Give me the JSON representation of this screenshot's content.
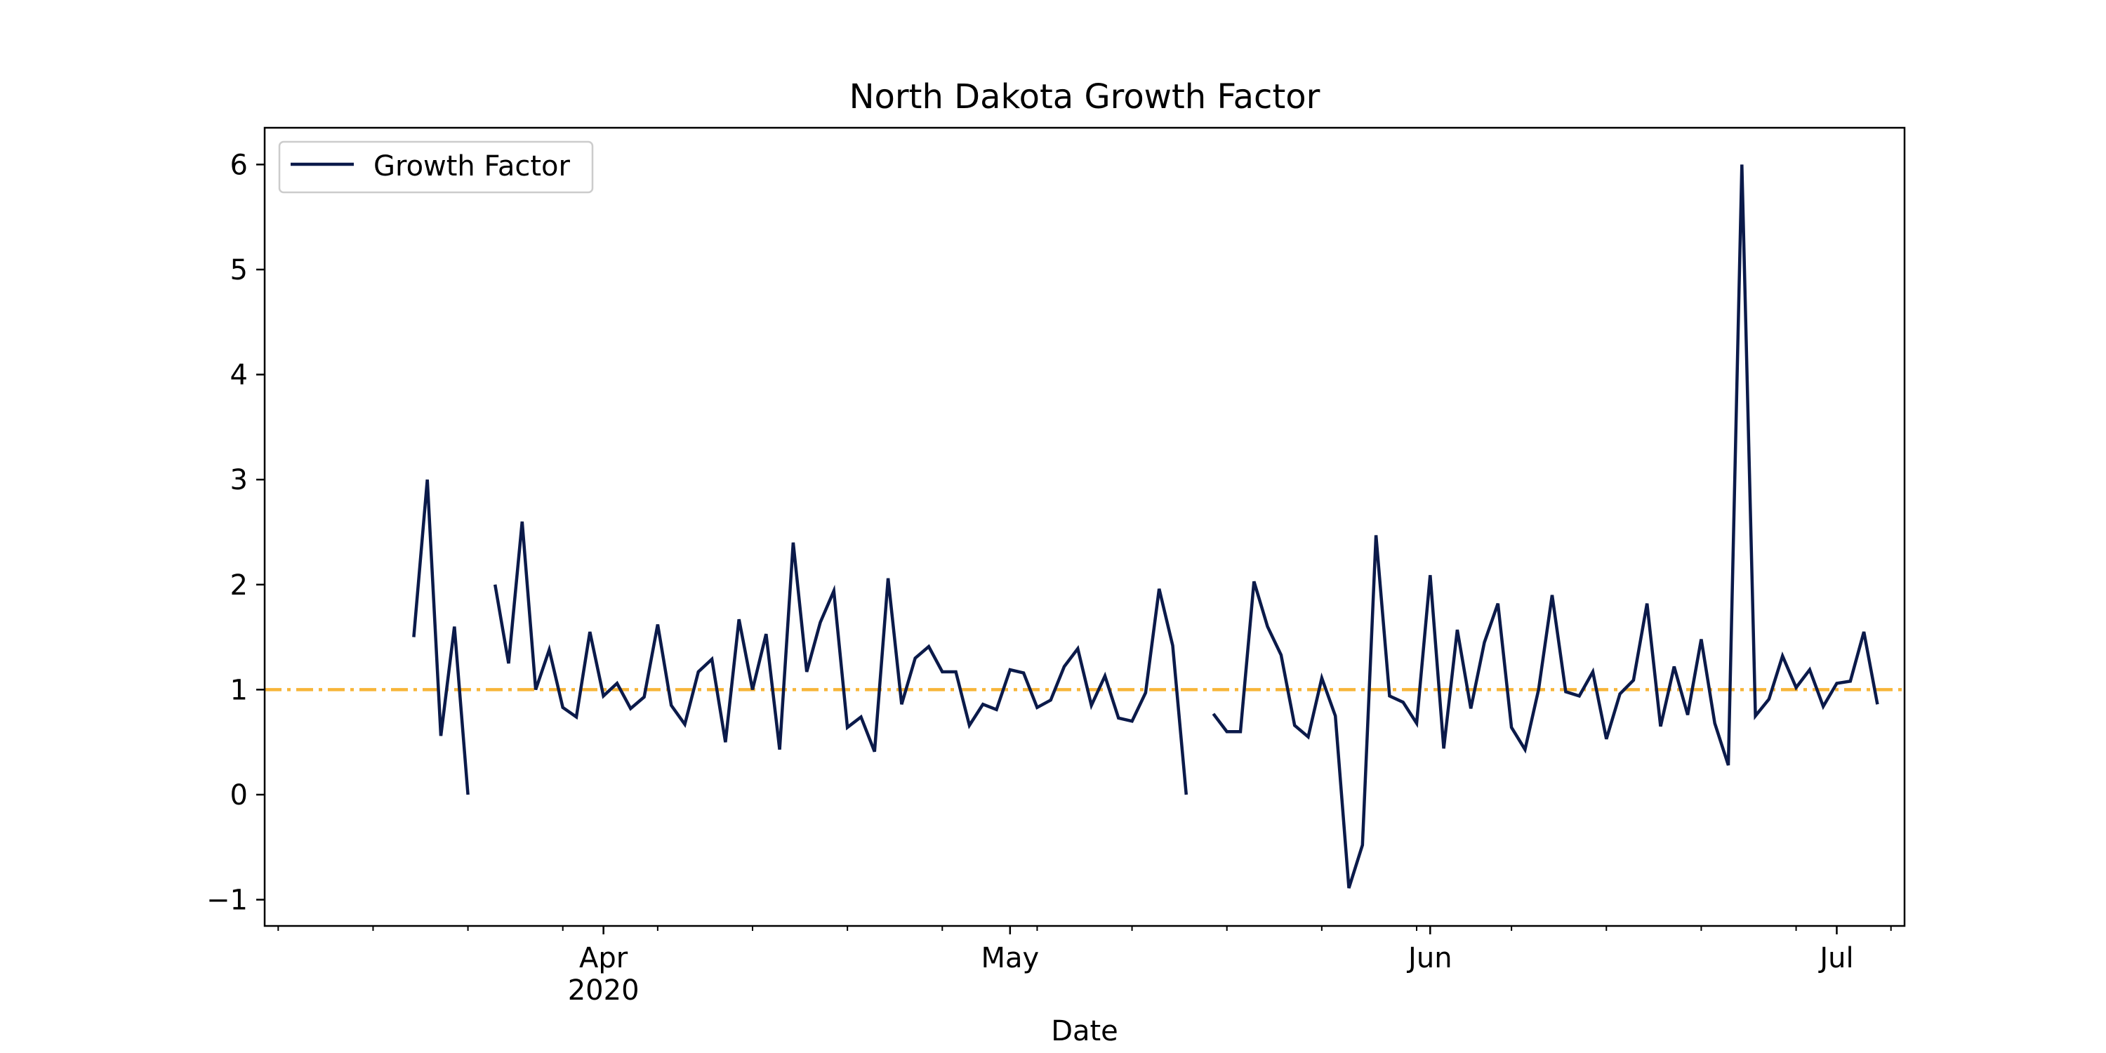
{
  "chart_data": {
    "type": "line",
    "title": "North Dakota Growth Factor",
    "xlabel": "Date",
    "ylabel": "",
    "xlim": [
      "2020-03-07",
      "2020-07-06"
    ],
    "ylim": [
      -1.25,
      6.35
    ],
    "yticks": [
      -1,
      0,
      1,
      2,
      3,
      4,
      5,
      6
    ],
    "ytick_labels": [
      "−1",
      "0",
      "1",
      "2",
      "3",
      "4",
      "5",
      "6"
    ],
    "xticks": [
      {
        "date": "2020-04-01",
        "label": "Apr",
        "sublabel": "2020"
      },
      {
        "date": "2020-05-01",
        "label": "May",
        "sublabel": ""
      },
      {
        "date": "2020-06-01",
        "label": "Jun",
        "sublabel": ""
      },
      {
        "date": "2020-07-01",
        "label": "Jul",
        "sublabel": ""
      }
    ],
    "minor_xticks": [
      "2020-03-08",
      "2020-03-15",
      "2020-03-22",
      "2020-03-29",
      "2020-04-05",
      "2020-04-12",
      "2020-04-19",
      "2020-04-26",
      "2020-05-03",
      "2020-05-10",
      "2020-05-17",
      "2020-05-24",
      "2020-05-31",
      "2020-06-07",
      "2020-06-14",
      "2020-06-21",
      "2020-06-28",
      "2020-07-05"
    ],
    "grid": false,
    "legend": {
      "position": "top-left",
      "entries": [
        "Growth Factor"
      ]
    },
    "reference_line": {
      "y": 1.0,
      "color": "#f7b538",
      "style": "dash-dot"
    },
    "series": [
      {
        "name": "Growth Factor",
        "color": "#0b1a4a",
        "start_date": "2020-03-18",
        "values": [
          1.5,
          3.0,
          0.56,
          1.6,
          0.0,
          null,
          2.0,
          1.25,
          2.6,
          1.0,
          1.38,
          0.83,
          0.74,
          1.55,
          0.94,
          1.06,
          0.82,
          0.93,
          1.62,
          0.85,
          0.67,
          1.17,
          1.29,
          0.5,
          1.67,
          1.0,
          1.53,
          0.43,
          2.4,
          1.17,
          1.64,
          1.94,
          0.64,
          0.74,
          0.41,
          2.06,
          0.86,
          1.3,
          1.41,
          1.17,
          1.17,
          0.66,
          0.86,
          0.81,
          1.19,
          1.16,
          0.83,
          0.9,
          1.22,
          1.39,
          0.85,
          1.13,
          0.73,
          0.7,
          0.97,
          1.96,
          1.42,
          0.0,
          null,
          0.77,
          0.6,
          0.6,
          2.03,
          1.6,
          1.33,
          0.66,
          0.55,
          1.11,
          0.75,
          -0.89,
          -0.48,
          2.47,
          0.94,
          0.88,
          0.68,
          2.09,
          0.44,
          1.57,
          0.82,
          1.45,
          1.82,
          0.64,
          0.43,
          1.0,
          1.9,
          0.98,
          0.94,
          1.17,
          0.53,
          0.96,
          1.09,
          1.82,
          0.65,
          1.22,
          0.76,
          1.48,
          0.68,
          0.28,
          6.0,
          0.75,
          0.91,
          1.32,
          1.02,
          1.19,
          0.84,
          1.06,
          1.08,
          1.55,
          0.86
        ]
      }
    ]
  }
}
